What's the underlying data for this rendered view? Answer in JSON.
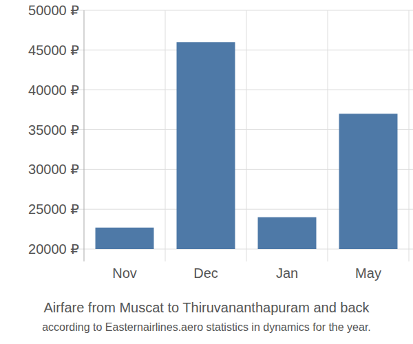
{
  "chart_data": {
    "type": "bar",
    "title": "Airfare from Muscat to Thiruvananthapuram and back",
    "subtitle": "according to Easternairlines.aero statistics in dynamics for the year.",
    "categories": [
      "Nov",
      "Dec",
      "Jan",
      "May"
    ],
    "values": [
      22700,
      46000,
      24000,
      37000
    ],
    "color": "#4e79a7",
    "ylim": [
      20000,
      50000
    ],
    "yticks": [
      {
        "value": 20000,
        "label": "20000 ₽"
      },
      {
        "value": 25000,
        "label": "25000 ₽"
      },
      {
        "value": 30000,
        "label": "30000 ₽"
      },
      {
        "value": 35000,
        "label": "35000 ₽"
      },
      {
        "value": 40000,
        "label": "40000 ₽"
      },
      {
        "value": 45000,
        "label": "45000 ₽"
      },
      {
        "value": 50000,
        "label": "50000 ₽"
      }
    ],
    "grid": true
  }
}
